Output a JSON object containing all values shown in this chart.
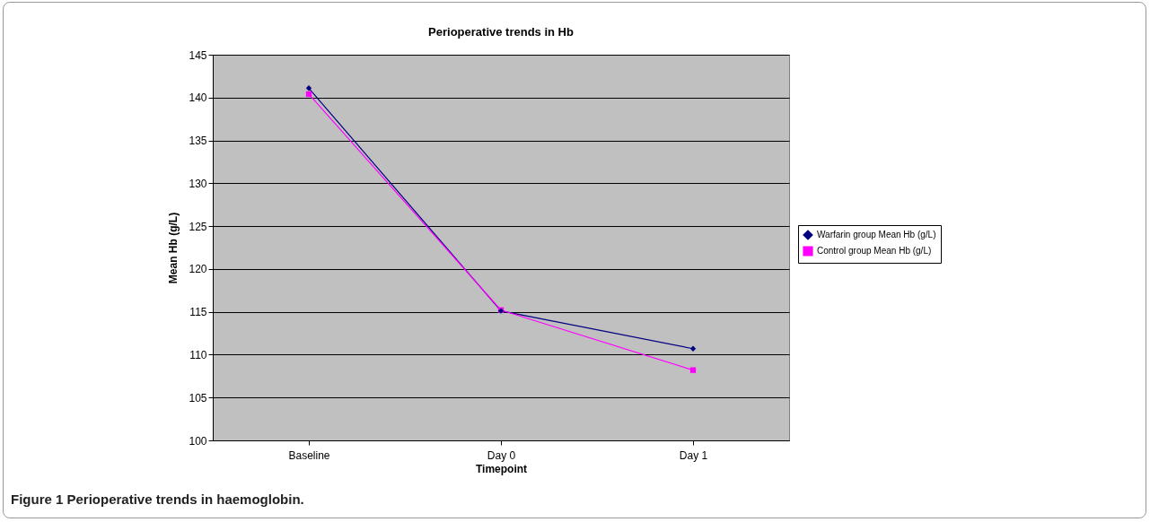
{
  "chart_data": {
    "type": "line",
    "title": "Perioperative trends in Hb",
    "xlabel": "Timepoint",
    "ylabel": "Mean Hb (g/L)",
    "categories": [
      "Baseline",
      "Day 0",
      "Day 1"
    ],
    "series": [
      {
        "name": "Warfarin group Mean Hb (g/L)",
        "color": "#000080",
        "marker": "diamond",
        "values": [
          141.1,
          115.1,
          110.7
        ]
      },
      {
        "name": "Control group Mean Hb (g/L)",
        "color": "#ff00ff",
        "marker": "square",
        "values": [
          140.4,
          115.2,
          108.2
        ]
      }
    ],
    "ylim": [
      100,
      145
    ],
    "yticks": [
      100,
      105,
      110,
      115,
      120,
      125,
      130,
      135,
      140,
      145
    ],
    "grid": "y",
    "legend": "right",
    "annotations": [
      "Figure 1 Perioperative trends in haemoglobin."
    ]
  }
}
